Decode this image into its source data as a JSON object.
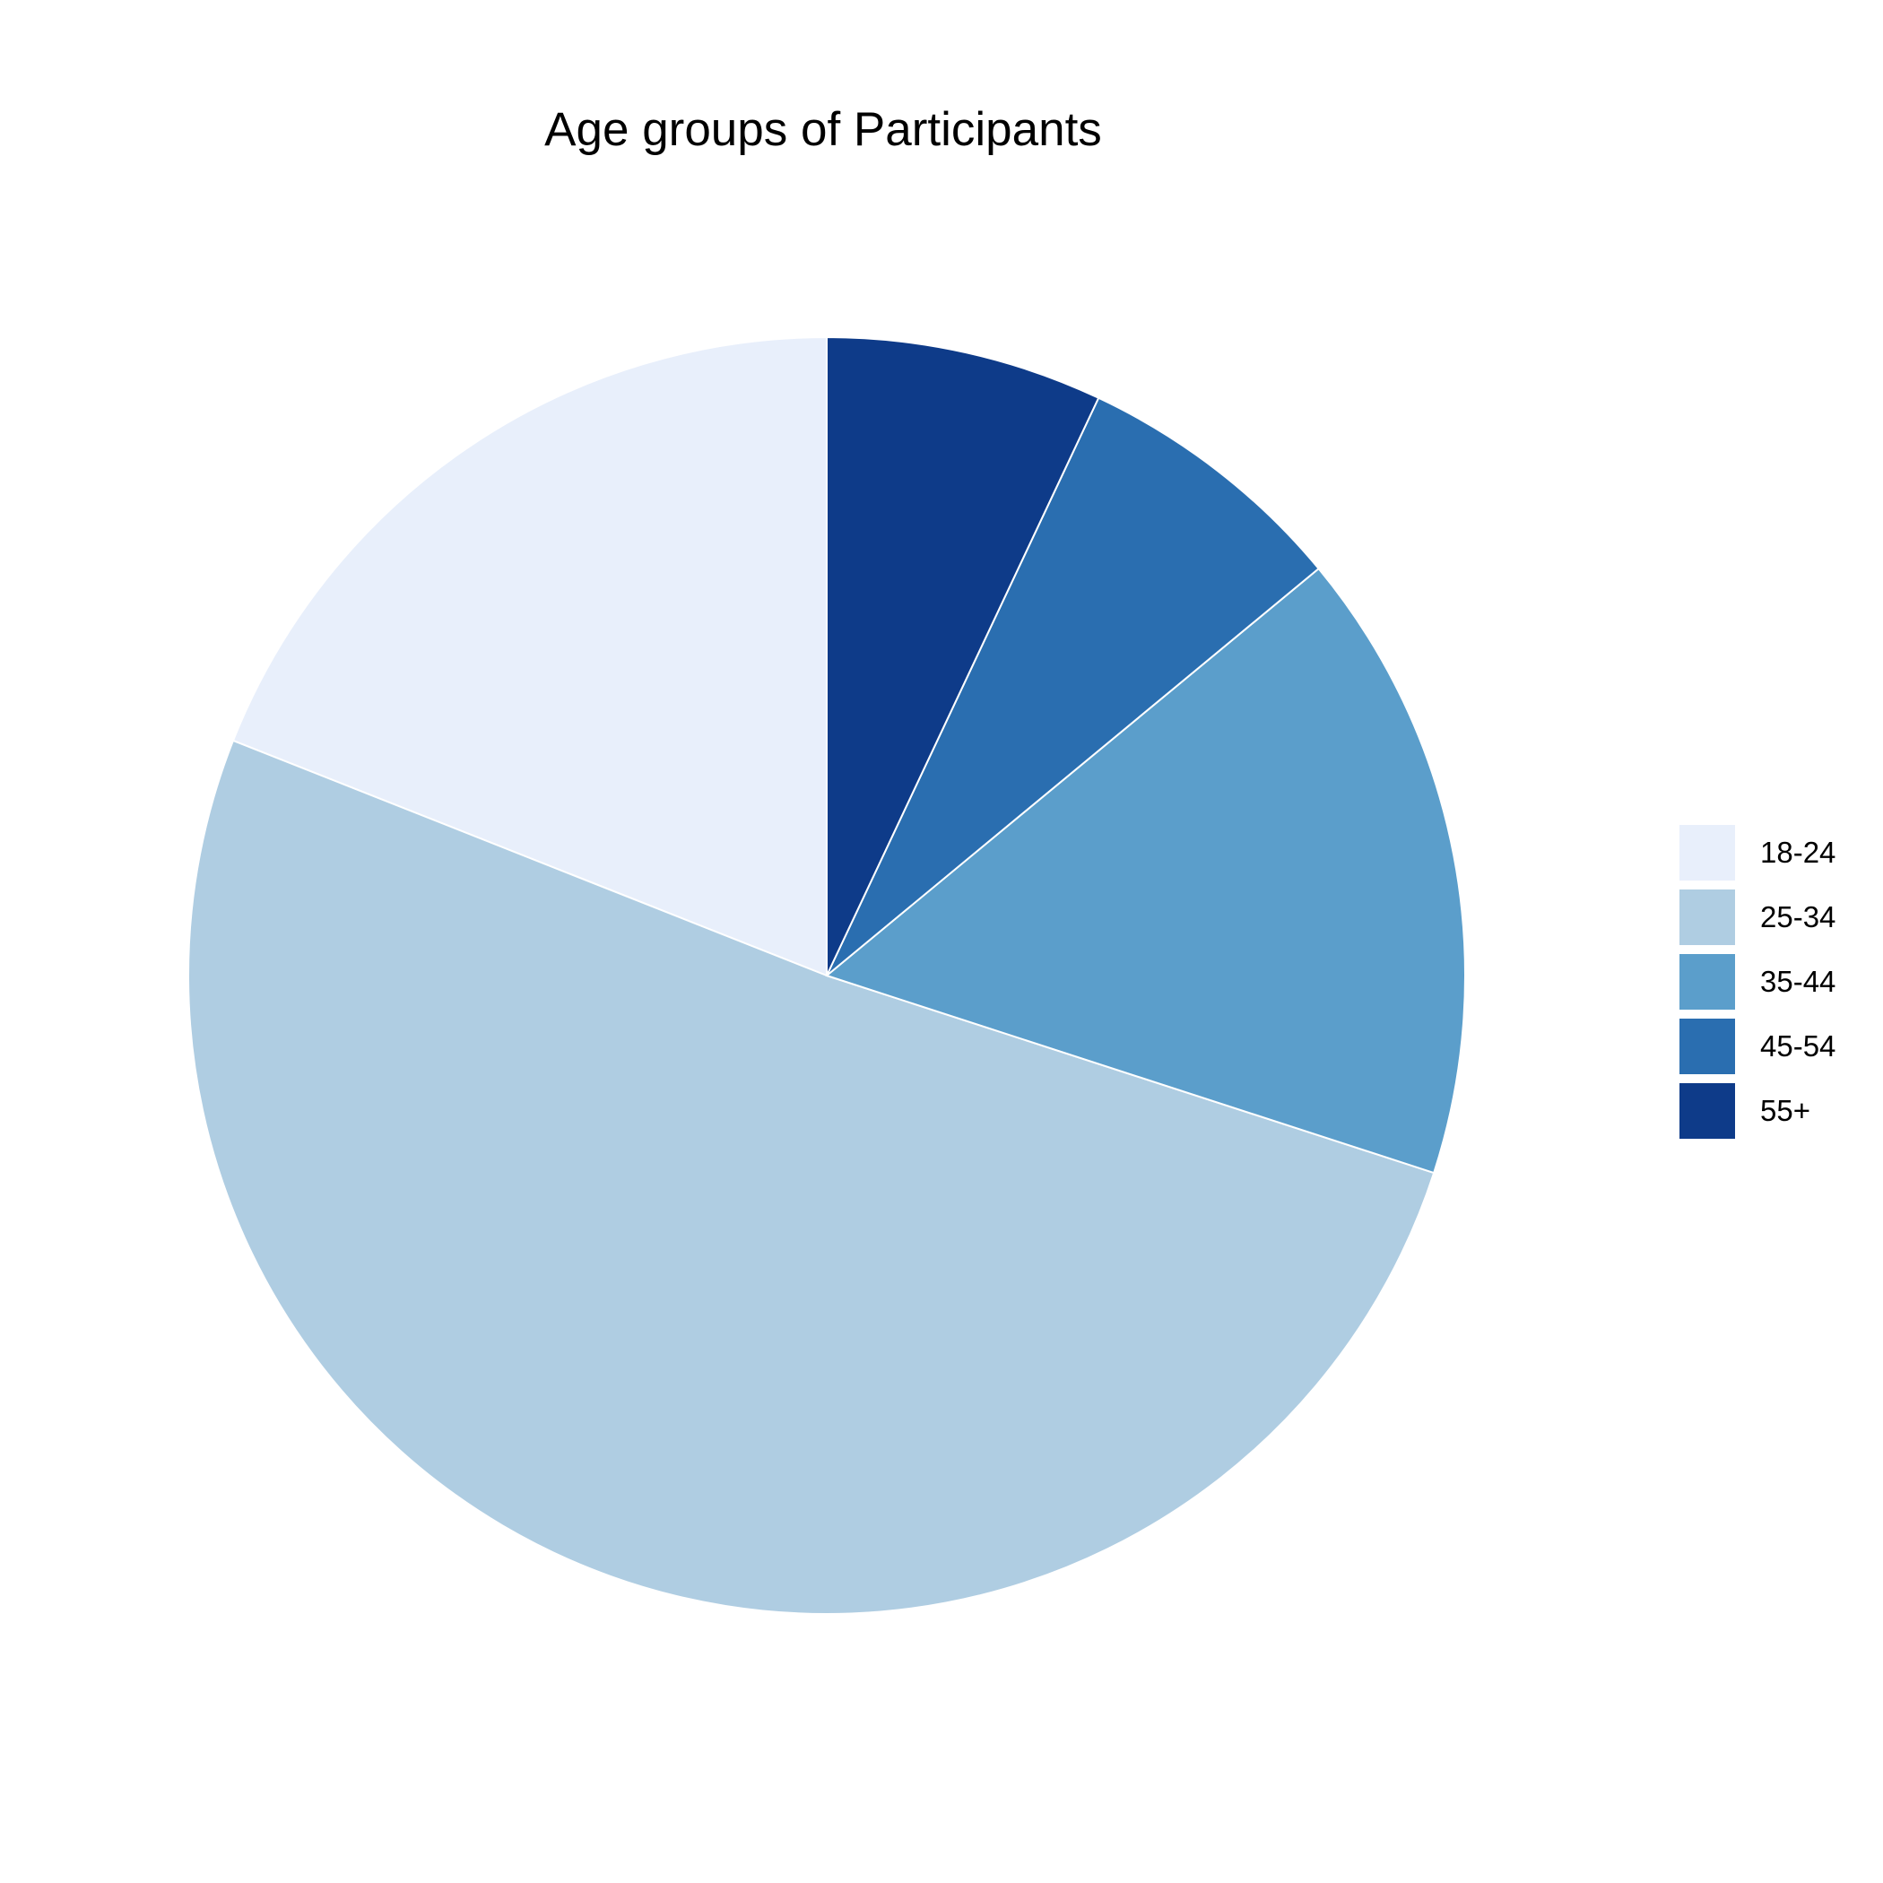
{
  "chart_data": {
    "type": "pie",
    "title": "Age groups of Participants",
    "categories": [
      "18-24",
      "25-34",
      "35-44",
      "45-54",
      "55+"
    ],
    "values": [
      19,
      51,
      16,
      7,
      7
    ],
    "colors": [
      "#e8effb",
      "#afcde2",
      "#5b9ecb",
      "#2a6eb0",
      "#0e3b89"
    ],
    "start_angle_deg": 0,
    "direction": "counterclockwise",
    "legend": "right",
    "slice_border_color": "#ffffff"
  }
}
